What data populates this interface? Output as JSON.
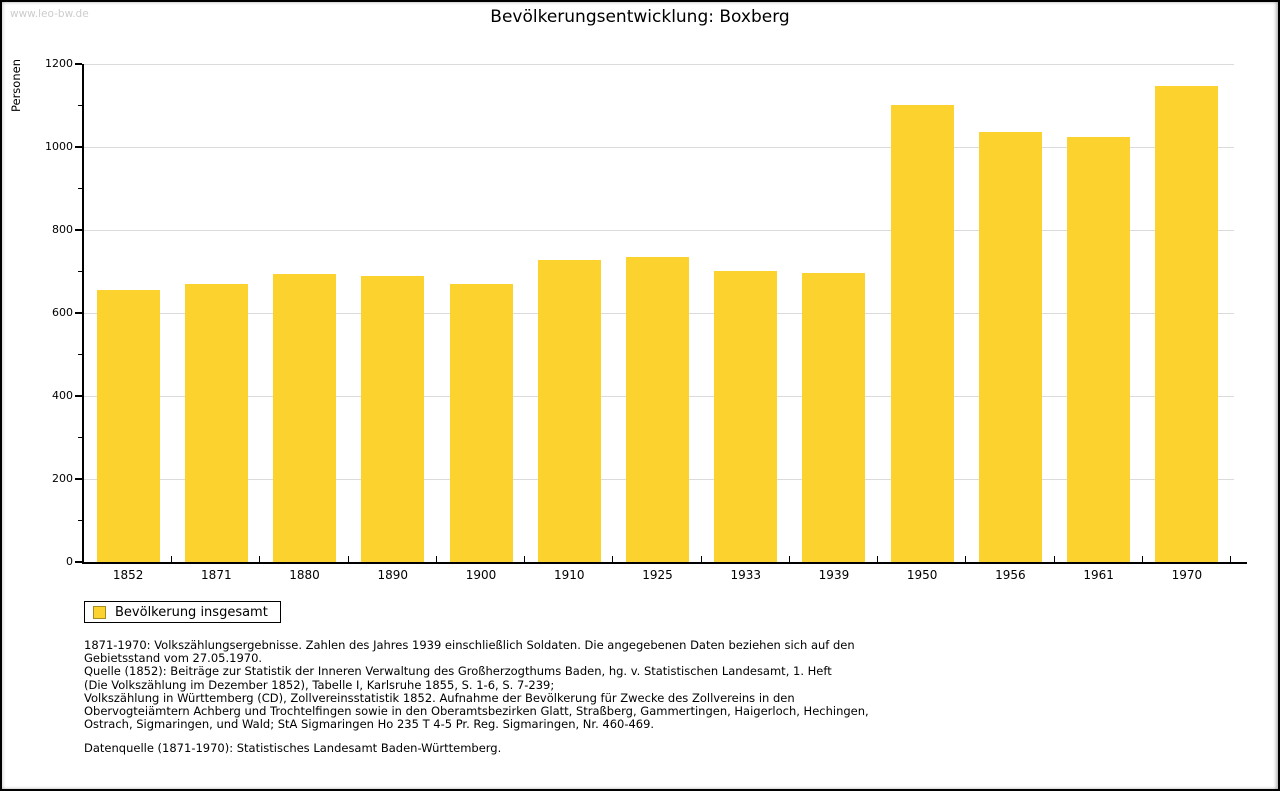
{
  "watermark": "www.leo-bw.de",
  "title": "Bevölkerungsentwicklung: Boxberg",
  "chart_data": {
    "type": "bar",
    "title": "Bevölkerungsentwicklung: Boxberg",
    "categories": [
      "1852",
      "1871",
      "1880",
      "1890",
      "1900",
      "1910",
      "1925",
      "1933",
      "1939",
      "1950",
      "1956",
      "1961",
      "1970"
    ],
    "values": [
      656,
      669,
      694,
      689,
      669,
      728,
      736,
      701,
      697,
      1102,
      1036,
      1024,
      1148
    ],
    "series_name": "Bevölkerung insgesamt",
    "xlabel": "",
    "ylabel": "Personen",
    "ylim": [
      0,
      1200
    ],
    "yticks": [
      0,
      200,
      400,
      600,
      800,
      1000,
      1200
    ],
    "yminorticks": [
      100,
      300,
      500,
      700,
      900,
      1100
    ],
    "grid": "horizontal-major",
    "legend_position": "bottom-left"
  },
  "legend": {
    "label": "Bevölkerung insgesamt"
  },
  "colors": {
    "bar": "#FCD32E",
    "swatch_border": "#A98C21",
    "gridline": "#DBDBDB",
    "axis": "#000000",
    "watermark": "#CCCCCC"
  },
  "footnotes": {
    "lines": [
      "1871-1970: Volkszählungsergebnisse. Zahlen des Jahres 1939 einschließlich Soldaten. Die angegebenen Daten beziehen sich auf den",
      "Gebietsstand vom 27.05.1970.",
      "Quelle (1852): Beiträge zur Statistik der Inneren Verwaltung des Großherzogthums Baden, hg. v. Statistischen Landesamt, 1. Heft",
      "(Die Volkszählung im Dezember 1852), Tabelle I, Karlsruhe 1855, S. 1-6, S. 7-239;",
      "Volkszählung in Württemberg (CD), Zollvereinsstatistik 1852. Aufnahme der Bevölkerung für Zwecke des Zollvereins in den",
      "Obervogteiämtern Achberg und Trochtelfingen sowie in den Oberamtsbezirken Glatt, Straßberg, Gammertingen, Haigerloch, Hechingen,",
      "Ostrach, Sigmaringen, und Wald; StA Sigmaringen Ho 235 T 4-5 Pr. Reg. Sigmaringen, Nr. 460-469."
    ],
    "datasource": "Datenquelle (1871-1970): Statistisches Landesamt Baden-Württemberg."
  }
}
